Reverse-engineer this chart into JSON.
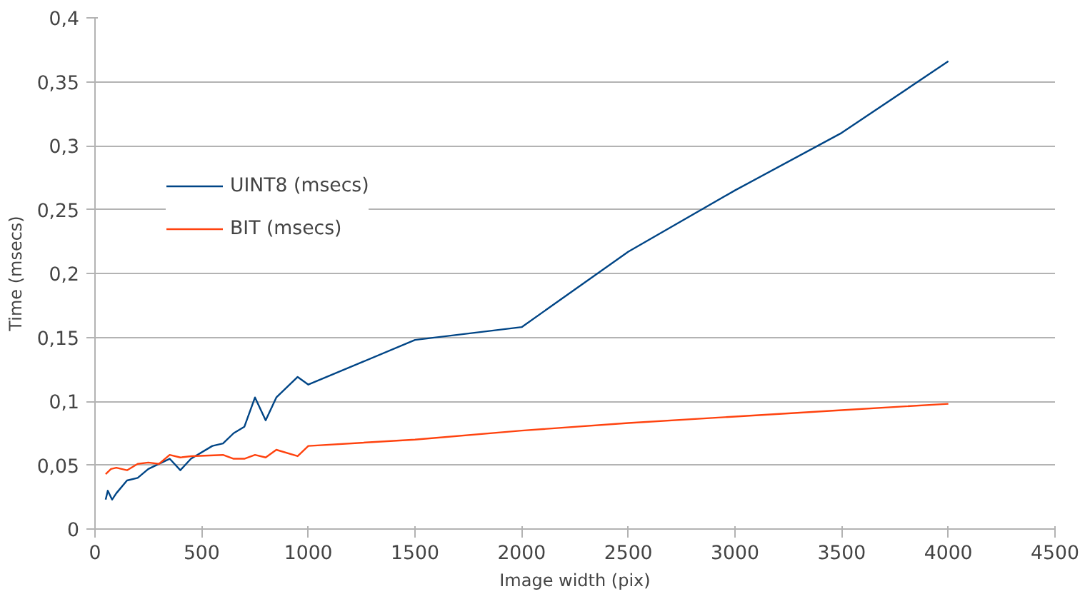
{
  "chart_data": {
    "type": "line",
    "xlabel": "Image width (pix)",
    "ylabel": "Time (msecs)",
    "xlim": [
      0,
      4500
    ],
    "xticks": [
      0,
      500,
      1000,
      1500,
      2000,
      2500,
      3000,
      3500,
      4000,
      4500
    ],
    "ylim": [
      0,
      0.4
    ],
    "yticks": [
      0,
      {
        "value": 0.05,
        "label": "0,05"
      },
      {
        "value": 0.1,
        "label": "0,1"
      },
      {
        "value": 0.15,
        "label": "0,15"
      },
      {
        "value": 0.2,
        "label": "0,2"
      },
      {
        "value": 0.25,
        "label": "0,25"
      },
      {
        "value": 0.3,
        "label": "0,3"
      },
      {
        "value": 0.35,
        "label": "0,35"
      },
      {
        "value": 0.4,
        "label": "0,4"
      }
    ],
    "grid": "y",
    "legend": "top left",
    "marker": "none",
    "line_style": "solid",
    "series": [
      {
        "name": "UINT8 (msecs)",
        "color": "#004586",
        "x": [
          50,
          60,
          80,
          100,
          150,
          200,
          250,
          350,
          400,
          450,
          550,
          600,
          650,
          700,
          750,
          800,
          850,
          950,
          1000,
          1500,
          2000,
          2500,
          3000,
          3500,
          4000
        ],
        "values": [
          0.023,
          0.03,
          0.023,
          0.028,
          0.038,
          0.04,
          0.047,
          0.055,
          0.046,
          0.055,
          0.065,
          0.067,
          0.075,
          0.08,
          0.103,
          0.085,
          0.103,
          0.119,
          0.113,
          0.148,
          0.158,
          0.217,
          0.265,
          0.31,
          0.366
        ]
      },
      {
        "name": "BIT (msecs)",
        "color": "#ff420e",
        "x": [
          50,
          75,
          100,
          150,
          200,
          250,
          300,
          350,
          400,
          450,
          600,
          650,
          700,
          750,
          800,
          850,
          950,
          1000,
          1500,
          2000,
          2500,
          3000,
          3500,
          4000
        ],
        "values": [
          0.043,
          0.047,
          0.048,
          0.046,
          0.051,
          0.052,
          0.051,
          0.058,
          0.056,
          0.057,
          0.058,
          0.055,
          0.055,
          0.058,
          0.056,
          0.062,
          0.057,
          0.065,
          0.07,
          0.077,
          0.083,
          0.088,
          0.093,
          0.098
        ]
      }
    ]
  }
}
